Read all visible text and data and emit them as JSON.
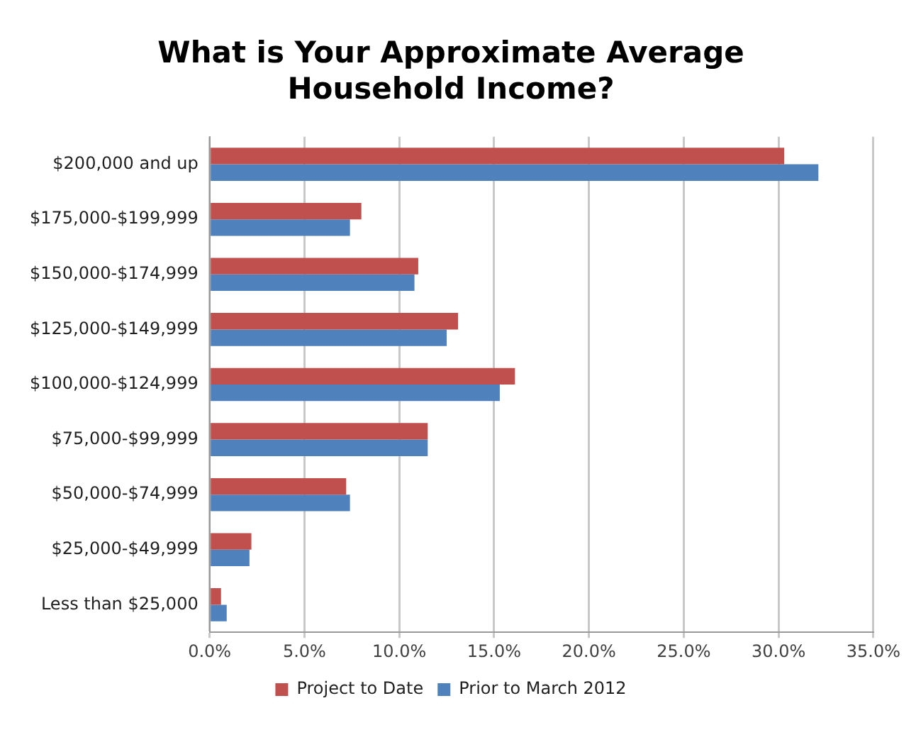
{
  "chart_data": {
    "type": "bar",
    "orientation": "horizontal",
    "title": "What is Your Approximate Average Household Income?",
    "categories": [
      "$200,000 and up",
      "$175,000-$199,999",
      "$150,000-$174,999",
      "$125,000-$149,999",
      "$100,000-$124,999",
      "$75,000-$99,999",
      "$50,000-$74,999",
      "$25,000-$49,999",
      "Less than $25,000"
    ],
    "series": [
      {
        "name": "Project to Date",
        "color": "#c0504d",
        "values": [
          30.3,
          8.0,
          11.0,
          13.1,
          16.1,
          11.5,
          7.2,
          2.2,
          0.6
        ]
      },
      {
        "name": "Prior to March 2012",
        "color": "#4f81bd",
        "values": [
          32.1,
          7.4,
          10.8,
          12.5,
          15.3,
          11.5,
          7.4,
          2.1,
          0.9
        ]
      }
    ],
    "xlim": [
      0,
      35
    ],
    "xticks": [
      {
        "value": 0,
        "label": "0.0%"
      },
      {
        "value": 5,
        "label": "5.0%"
      },
      {
        "value": 10,
        "label": "10.0%"
      },
      {
        "value": 15,
        "label": "15.0%"
      },
      {
        "value": 20,
        "label": "20.0%"
      },
      {
        "value": 25,
        "label": "25.0%"
      },
      {
        "value": 30,
        "label": "30.0%"
      },
      {
        "value": 35,
        "label": "35.0%"
      }
    ],
    "grid": "x",
    "legend": "bottom"
  }
}
